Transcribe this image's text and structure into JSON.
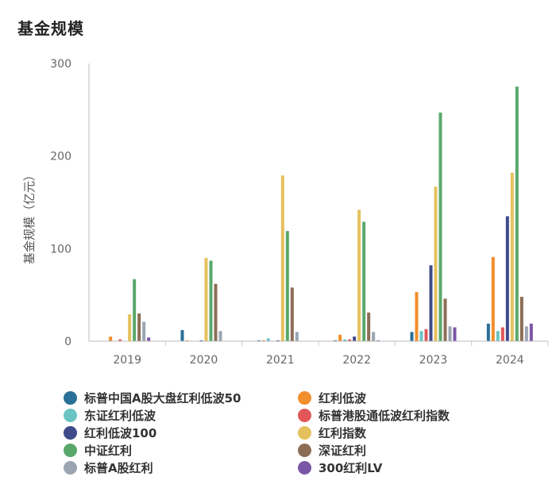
{
  "title": "基金规模",
  "chart_data": {
    "type": "bar",
    "title": "",
    "xlabel": "",
    "ylabel": "基金规模（亿元）",
    "ylim": [
      0,
      300
    ],
    "yticks": [
      0,
      100,
      200,
      300
    ],
    "grid": false,
    "legend_position": "bottom",
    "categories": [
      "2019",
      "2020",
      "2021",
      "2022",
      "2023",
      "2024"
    ],
    "series": [
      {
        "name": "标普中国A股大盘红利低波50",
        "color": "#2a6f97",
        "values": [
          0,
          12,
          1,
          1,
          10,
          19
        ]
      },
      {
        "name": "红利低波",
        "color": "#f28e2b",
        "values": [
          5,
          1,
          1,
          7,
          53,
          91
        ]
      },
      {
        "name": "东证红利低波",
        "color": "#6cc3c4",
        "values": [
          0,
          0,
          3,
          2,
          11,
          11
        ]
      },
      {
        "name": "标普港股通低波红利指数",
        "color": "#e15759",
        "values": [
          2,
          0,
          0,
          2,
          13,
          15
        ]
      },
      {
        "name": "红利低波100",
        "color": "#3e4a89",
        "values": [
          0,
          1,
          1,
          5,
          82,
          135
        ]
      },
      {
        "name": "红利指数",
        "color": "#e5c15d",
        "values": [
          29,
          90,
          179,
          142,
          167,
          182
        ]
      },
      {
        "name": "中证红利",
        "color": "#59a86b",
        "values": [
          67,
          87,
          119,
          129,
          247,
          275
        ]
      },
      {
        "name": "深证红利",
        "color": "#8c6d55",
        "values": [
          30,
          62,
          58,
          31,
          46,
          48
        ]
      },
      {
        "name": "标普A股红利",
        "color": "#9aa5b1",
        "values": [
          21,
          11,
          10,
          10,
          16,
          16
        ]
      },
      {
        "name": "300红利LV",
        "color": "#7b56a6",
        "values": [
          4,
          0,
          0,
          1,
          15,
          19
        ]
      }
    ]
  }
}
